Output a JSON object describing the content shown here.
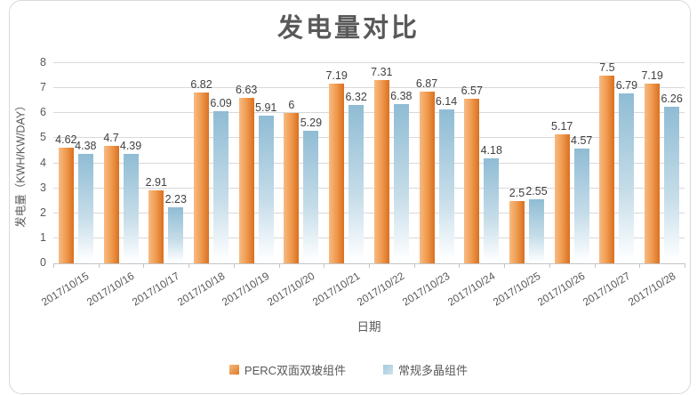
{
  "chart_data": {
    "type": "bar",
    "title": "发电量对比",
    "xlabel": "日期",
    "ylabel": "发电量（KWH/KW/DAY）",
    "categories": [
      "2017/10/15",
      "2017/10/16",
      "2017/10/17",
      "2017/10/18",
      "2017/10/19",
      "2017/10/20",
      "2017/10/21",
      "2017/10/22",
      "2017/10/23",
      "2017/10/24",
      "2017/10/25",
      "2017/10/26",
      "2017/10/27",
      "2017/10/28"
    ],
    "series": [
      {
        "name": "PERC双面双玻组件",
        "values": [
          4.62,
          4.7,
          2.91,
          6.82,
          6.63,
          6,
          7.19,
          7.31,
          6.87,
          6.57,
          2.5,
          5.17,
          7.5,
          7.19
        ],
        "fill_from": "#f7bb84",
        "fill_mid": "#ef9a4e",
        "fill_to": "#da7020",
        "fill_direction": "horizontal",
        "marker_color_from": "#f6b87e",
        "marker_color_to": "#e07b28"
      },
      {
        "name": "常规多晶组件",
        "values": [
          4.38,
          4.39,
          2.23,
          6.09,
          5.91,
          5.29,
          6.32,
          6.38,
          6.14,
          4.18,
          2.55,
          4.57,
          6.79,
          6.26
        ],
        "fill_from": "#8fbcd4",
        "fill_mid": "#c6dde9",
        "fill_to": "#fdfeff",
        "fill_direction": "vertical-fade",
        "marker_color_from": "#a5cadd",
        "marker_color_to": "#cde2ed"
      }
    ],
    "ylim": [
      0,
      8
    ],
    "ytick_step": 1,
    "grid": true,
    "legend_position": "bottom",
    "data_labels_shown": true,
    "colors": {
      "title_text": "#595959",
      "axis_text": "#595959",
      "data_label_text": "#404040",
      "gridline": "#d9d9d9",
      "axis_line": "#c4c4c4",
      "frame_border": "#d9d9d9",
      "background": "#ffffff"
    }
  }
}
